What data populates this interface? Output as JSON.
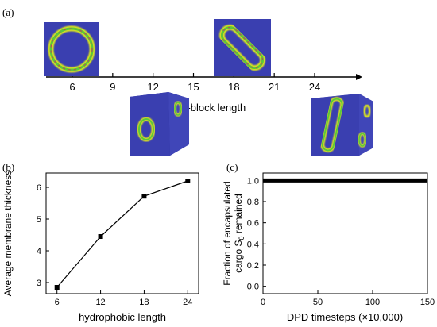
{
  "panel_a": {
    "label": "(a)",
    "axis_label": "A-block length",
    "ticks": [
      "6",
      "9",
      "12",
      "15",
      "18",
      "21",
      "24"
    ],
    "images": [
      {
        "name": "ring-2d-a6",
        "kind": "ring"
      },
      {
        "name": "elongated-2d-a18",
        "kind": "elongated"
      },
      {
        "name": "cube-3d-a12",
        "kind": "cube-rings"
      },
      {
        "name": "cube-3d-a24",
        "kind": "cube-elongated"
      }
    ],
    "colors": {
      "background": "#3a3fb0",
      "membrane": "#d8e020",
      "core": "#5cc83a",
      "inner": "#c83a5a"
    }
  },
  "chart_data": [
    {
      "label": "(b)",
      "type": "line",
      "x": [
        6,
        12,
        18,
        24
      ],
      "values": [
        2.85,
        4.45,
        5.72,
        6.2
      ],
      "xlabel": "hydrophobic length",
      "ylabel": "Average membrane thickness",
      "xlim": [
        4.5,
        25.5
      ],
      "ylim": [
        2.65,
        6.45
      ],
      "xticks": [
        "6",
        "12",
        "18",
        "24"
      ],
      "yticks": [
        "3",
        "4",
        "5",
        "6"
      ],
      "marker": "square",
      "grid": false
    },
    {
      "label": "(c)",
      "type": "line",
      "x": [
        0,
        150
      ],
      "values": [
        1.0,
        1.0
      ],
      "xlabel": "DPD timesteps (×10,000)",
      "ylabel_line1": "Fraction of encapsulated",
      "ylabel_line2_pre": "cargo S",
      "ylabel_line2_sub": "0",
      "ylabel_line2_post": " remained",
      "xlim": [
        0,
        150
      ],
      "ylim": [
        -0.07,
        1.07
      ],
      "xticks": [
        "0",
        "50",
        "100",
        "150"
      ],
      "yticks": [
        "0.0",
        "0.2",
        "0.4",
        "0.6",
        "0.8",
        "1.0"
      ],
      "grid": false
    }
  ]
}
